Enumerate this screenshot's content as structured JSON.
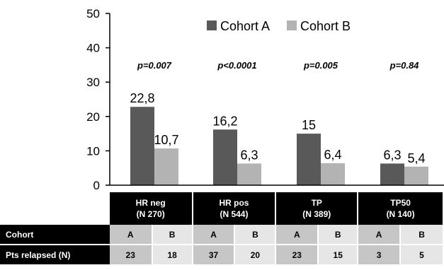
{
  "chart_data": {
    "type": "bar",
    "categories": [
      "HR neg",
      "HR pos",
      "TP",
      "TP50"
    ],
    "series": [
      {
        "name": "Cohort A",
        "values": [
          22.8,
          16.2,
          15,
          6.3
        ],
        "labels": [
          "22,8",
          "16,2",
          "15",
          "6,3"
        ],
        "color": "#595959"
      },
      {
        "name": "Cohort B",
        "values": [
          10.7,
          6.3,
          6.4,
          5.4
        ],
        "labels": [
          "10,7",
          "6,3",
          "6,4",
          "5,4"
        ],
        "color": "#b3b3b3"
      }
    ],
    "pvalues": [
      "p=0.007",
      "p<0.0001",
      "p=0.005",
      "p=0.84"
    ],
    "ylim": [
      0,
      50
    ],
    "yticks": [
      "0",
      "10",
      "20",
      "30",
      "40",
      "50"
    ],
    "legend_position": "top-right",
    "grid": false,
    "title": "",
    "xlabel": "",
    "ylabel": ""
  },
  "table": {
    "headers": [
      {
        "name": "HR neg",
        "n": "(N 270)"
      },
      {
        "name": "HR pos",
        "n": "(N 544)"
      },
      {
        "name": "TP",
        "n": "(N 389)"
      },
      {
        "name": "TP50",
        "n": "(N 140)"
      }
    ],
    "rows": [
      {
        "label": "Cohort",
        "cells": [
          "A",
          "B",
          "A",
          "B",
          "A",
          "B",
          "A",
          "B"
        ]
      },
      {
        "label": "Pts relapsed (N)",
        "cells": [
          "23",
          "18",
          "37",
          "20",
          "23",
          "15",
          "3",
          "5"
        ]
      }
    ]
  }
}
